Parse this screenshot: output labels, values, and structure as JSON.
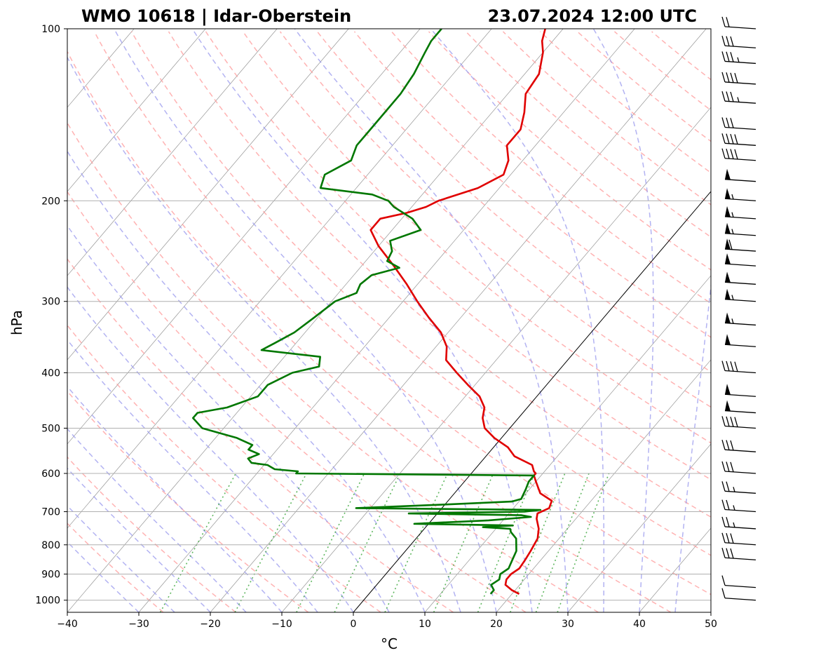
{
  "chart_data": {
    "type": "line",
    "title_left": "WMO 10618 | Idar-Oberstein",
    "title_right": "23.07.2024 12:00 UTC",
    "xlabel": "°C",
    "ylabel": "hPa",
    "xlim": [
      -40,
      50
    ],
    "ylim": [
      1050,
      100
    ],
    "grid": true,
    "x_ticks": [
      -40,
      -30,
      -20,
      -10,
      0,
      10,
      20,
      30,
      40,
      50
    ],
    "y_ticks": [
      1000,
      900,
      800,
      700,
      600,
      500,
      400,
      300,
      200,
      100
    ],
    "colors": {
      "temperature": "#e00000",
      "dewpoint": "#007700",
      "dry_adiabats": "#ff9999",
      "moist_adiabats": "#9999ee",
      "mixing_ratio": "#44aa44",
      "isotherms": "#666666",
      "zero_isotherm": "#000000"
    },
    "series": [
      {
        "name": "temperature",
        "points": [
          [
            975,
            21.0
          ],
          [
            960,
            19.5
          ],
          [
            940,
            18.0
          ],
          [
            920,
            17.5
          ],
          [
            900,
            17.5
          ],
          [
            880,
            18.0
          ],
          [
            850,
            17.8
          ],
          [
            820,
            17.5
          ],
          [
            780,
            17.0
          ],
          [
            750,
            16.0
          ],
          [
            720,
            14.5
          ],
          [
            705,
            14.0
          ],
          [
            690,
            15.0
          ],
          [
            670,
            14.5
          ],
          [
            650,
            12.0
          ],
          [
            620,
            10.0
          ],
          [
            605,
            9.0
          ],
          [
            600,
            9.0
          ],
          [
            595,
            8.5
          ],
          [
            580,
            7.5
          ],
          [
            560,
            4.0
          ],
          [
            540,
            2.0
          ],
          [
            520,
            -1.0
          ],
          [
            500,
            -3.5
          ],
          [
            480,
            -5.0
          ],
          [
            460,
            -6.0
          ],
          [
            440,
            -8.0
          ],
          [
            420,
            -11.0
          ],
          [
            400,
            -14.0
          ],
          [
            380,
            -17.0
          ],
          [
            360,
            -18.5
          ],
          [
            340,
            -21.0
          ],
          [
            320,
            -24.5
          ],
          [
            300,
            -28.0
          ],
          [
            280,
            -31.5
          ],
          [
            260,
            -35.5
          ],
          [
            240,
            -40.0
          ],
          [
            225,
            -43.0
          ],
          [
            215,
            -43.0
          ],
          [
            210,
            -40.0
          ],
          [
            205,
            -38.0
          ],
          [
            200,
            -37.0
          ],
          [
            190,
            -33.0
          ],
          [
            180,
            -31.0
          ],
          [
            170,
            -32.0
          ],
          [
            160,
            -34.0
          ],
          [
            150,
            -34.0
          ],
          [
            140,
            -35.5
          ],
          [
            130,
            -37.5
          ],
          [
            120,
            -38.0
          ],
          [
            110,
            -40.0
          ],
          [
            105,
            -41.5
          ],
          [
            100,
            -42.5
          ]
        ]
      },
      {
        "name": "dewpoint",
        "points": [
          [
            975,
            17.0
          ],
          [
            960,
            17.0
          ],
          [
            940,
            16.0
          ],
          [
            920,
            16.5
          ],
          [
            900,
            16.0
          ],
          [
            880,
            16.5
          ],
          [
            850,
            16.0
          ],
          [
            820,
            15.5
          ],
          [
            780,
            14.0
          ],
          [
            760,
            12.5
          ],
          [
            750,
            12.0
          ],
          [
            745,
            8.0
          ],
          [
            740,
            12.0
          ],
          [
            735,
            -2.0
          ],
          [
            725,
            8.0
          ],
          [
            715,
            13.5
          ],
          [
            710,
            12.0
          ],
          [
            705,
            -4.0
          ],
          [
            700,
            12.0
          ],
          [
            695,
            14.0
          ],
          [
            690,
            -12.0
          ],
          [
            680,
            0.0
          ],
          [
            672,
            9.0
          ],
          [
            665,
            10.0
          ],
          [
            640,
            9.5
          ],
          [
            620,
            9.0
          ],
          [
            605,
            9.0
          ],
          [
            600,
            -24.5
          ],
          [
            595,
            -24.5
          ],
          [
            590,
            -28.0
          ],
          [
            580,
            -29.5
          ],
          [
            575,
            -32.0
          ],
          [
            565,
            -33.0
          ],
          [
            555,
            -32.0
          ],
          [
            545,
            -34.0
          ],
          [
            535,
            -34.0
          ],
          [
            520,
            -37.0
          ],
          [
            500,
            -43.0
          ],
          [
            480,
            -45.5
          ],
          [
            470,
            -45.5
          ],
          [
            460,
            -42.0
          ],
          [
            440,
            -39.0
          ],
          [
            420,
            -39.0
          ],
          [
            400,
            -37.0
          ],
          [
            390,
            -34.0
          ],
          [
            375,
            -35.0
          ],
          [
            365,
            -44.0
          ],
          [
            355,
            -43.0
          ],
          [
            340,
            -41.5
          ],
          [
            320,
            -40.5
          ],
          [
            300,
            -39.5
          ],
          [
            290,
            -37.5
          ],
          [
            280,
            -38.0
          ],
          [
            270,
            -37.5
          ],
          [
            262,
            -34.5
          ],
          [
            255,
            -37.0
          ],
          [
            245,
            -37.5
          ],
          [
            235,
            -39.0
          ],
          [
            225,
            -36.0
          ],
          [
            215,
            -38.5
          ],
          [
            205,
            -42.5
          ],
          [
            200,
            -44.0
          ],
          [
            195,
            -47.0
          ],
          [
            190,
            -55.0
          ],
          [
            180,
            -56.0
          ],
          [
            170,
            -54.0
          ],
          [
            160,
            -55.0
          ],
          [
            150,
            -55.0
          ],
          [
            140,
            -55.0
          ],
          [
            130,
            -55.0
          ],
          [
            120,
            -55.5
          ],
          [
            110,
            -56.5
          ],
          [
            105,
            -57.0
          ],
          [
            100,
            -57.0
          ]
        ]
      }
    ],
    "wind_barbs": [
      {
        "p": 1000,
        "spd_kt": 10
      },
      {
        "p": 950,
        "spd_kt": 10
      },
      {
        "p": 850,
        "spd_kt": 30
      },
      {
        "p": 800,
        "spd_kt": 30
      },
      {
        "p": 750,
        "spd_kt": 25
      },
      {
        "p": 700,
        "spd_kt": 25
      },
      {
        "p": 650,
        "spd_kt": 25
      },
      {
        "p": 600,
        "spd_kt": 30
      },
      {
        "p": 550,
        "spd_kt": 30
      },
      {
        "p": 500,
        "spd_kt": 40
      },
      {
        "p": 470,
        "spd_kt": 50
      },
      {
        "p": 440,
        "spd_kt": 50
      },
      {
        "p": 400,
        "spd_kt": 40
      },
      {
        "p": 360,
        "spd_kt": 50
      },
      {
        "p": 330,
        "spd_kt": 55
      },
      {
        "p": 300,
        "spd_kt": 55
      },
      {
        "p": 280,
        "spd_kt": 50
      },
      {
        "p": 260,
        "spd_kt": 50
      },
      {
        "p": 245,
        "spd_kt": 60
      },
      {
        "p": 230,
        "spd_kt": 55
      },
      {
        "p": 215,
        "spd_kt": 55
      },
      {
        "p": 200,
        "spd_kt": 55
      },
      {
        "p": 185,
        "spd_kt": 50
      },
      {
        "p": 170,
        "spd_kt": 40
      },
      {
        "p": 160,
        "spd_kt": 40
      },
      {
        "p": 150,
        "spd_kt": 30
      },
      {
        "p": 135,
        "spd_kt": 35
      },
      {
        "p": 125,
        "spd_kt": 40
      },
      {
        "p": 115,
        "spd_kt": 35
      },
      {
        "p": 108,
        "spd_kt": 30
      },
      {
        "p": 100,
        "spd_kt": 20
      }
    ]
  }
}
